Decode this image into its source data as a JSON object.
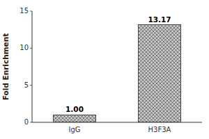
{
  "chart_data": {
    "type": "bar",
    "ylabel": "Fold Enrichment",
    "categories": [
      "IgG",
      "H3F3A"
    ],
    "values": [
      1.0,
      13.17
    ],
    "value_labels": [
      "1.00",
      "13.17"
    ],
    "data_labels": true,
    "color": "#c8c8c8",
    "ylim": [
      0,
      15
    ],
    "yticks": [
      0,
      5,
      10,
      15
    ],
    "grid": false
  }
}
